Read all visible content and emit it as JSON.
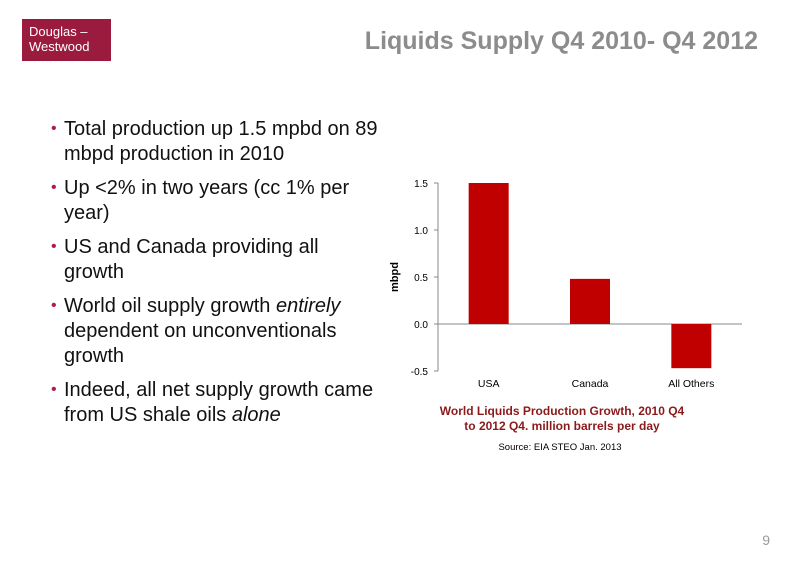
{
  "logo": {
    "line1": "Douglas –",
    "line2": "Westwood"
  },
  "slide": {
    "title": "Liquids Supply Q4 2010- Q4 2012",
    "page_number": "9"
  },
  "bullets": [
    {
      "before": "Total production up 1.5 mpbd on 89 mbpd production in 2010",
      "emph": "",
      "after": ""
    },
    {
      "before": "Up <2% in two years (cc 1% per year)",
      "emph": "",
      "after": ""
    },
    {
      "before": "US and Canada providing all growth",
      "emph": "",
      "after": ""
    },
    {
      "before": "World oil supply growth ",
      "emph": "entirely",
      "after": " dependent on unconventionals growth"
    },
    {
      "before": "Indeed, all net supply growth came from US shale oils ",
      "emph": "alone",
      "after": ""
    }
  ],
  "caption": {
    "line1": "World Liquids Production Growth, 2010 Q4",
    "line2": "to 2012 Q4.  million barrels per day"
  },
  "source": "Source: EIA STEO  Jan. 2013",
  "colors": {
    "bar": "#c00000",
    "accent": "#9b1b3f",
    "title": "#8c8c8c"
  },
  "chart_data": {
    "type": "bar",
    "categories": [
      "USA",
      "Canada",
      "All Others"
    ],
    "values": [
      1.5,
      0.48,
      -0.47
    ],
    "ylabel": "mbpd",
    "ylim": [
      -0.5,
      1.5
    ],
    "yticks": [
      -0.5,
      0.0,
      0.5,
      1.0,
      1.5
    ],
    "ytick_labels": [
      "-0.5",
      "0.0",
      "0.5",
      "1.0",
      "1.5"
    ],
    "grid": false,
    "legend": "none"
  }
}
